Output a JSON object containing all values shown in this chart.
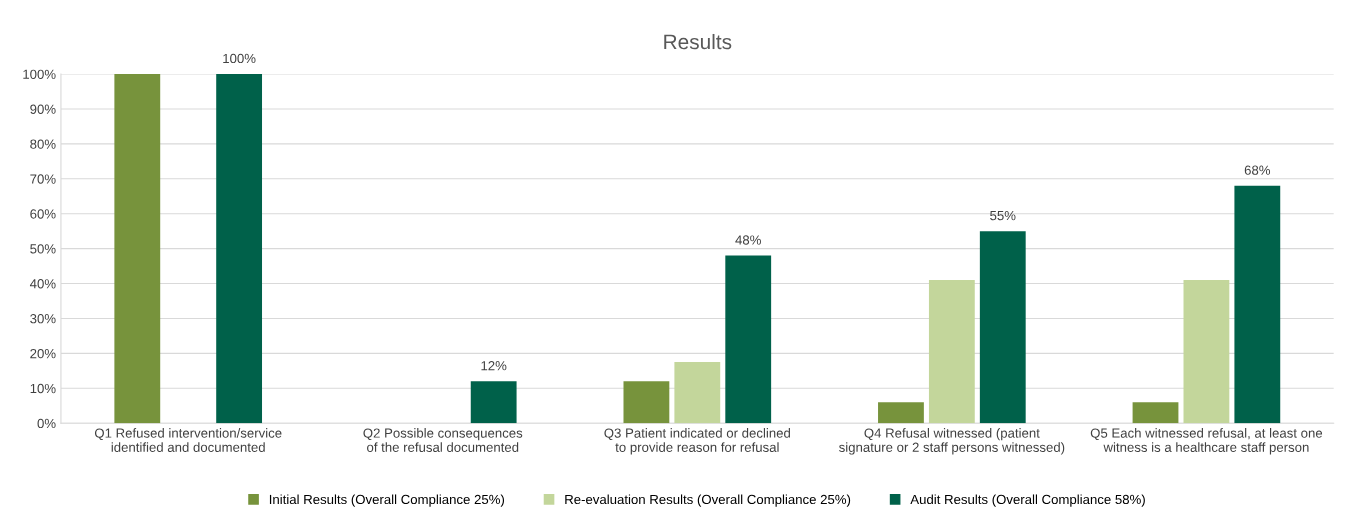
{
  "chart_data": {
    "type": "bar",
    "title": "Results",
    "categories": [
      "Q1 Refused intervention/service identified and documented",
      "Q2 Possible consequences of the refusal documented",
      "Q3 Patient indicated or declined to provide reason for refusal",
      "Q4 Refusal witnessed (patient signature or 2 staff persons witnessed)",
      "Q5 Each witnessed refusal, at least one witness is a healthcare staff person"
    ],
    "series": [
      {
        "name": "Initial Results (Overall Compliance 25%)",
        "color": "#77933c",
        "values": [
          100,
          0,
          12,
          6,
          6
        ]
      },
      {
        "name": "Re-evaluation Results (Overall Compliance 25%)",
        "color": "#c3d69b",
        "values": [
          0,
          0,
          17.5,
          41,
          41
        ]
      },
      {
        "name": "Audit Results (Overall Compliance 58%)",
        "color": "#00614a",
        "values": [
          100,
          12,
          48,
          55,
          68
        ],
        "value_labels": [
          "100%",
          "12%",
          "48%",
          "55%",
          "68%"
        ]
      }
    ],
    "ylim": [
      0,
      100
    ],
    "yticks": [
      {
        "value": 0,
        "label": "0%"
      },
      {
        "value": 10,
        "label": "10%"
      },
      {
        "value": 20,
        "label": "20%"
      },
      {
        "value": 30,
        "label": "30%"
      },
      {
        "value": 40,
        "label": "40%"
      },
      {
        "value": 50,
        "label": "50%"
      },
      {
        "value": 60,
        "label": "60%"
      },
      {
        "value": 70,
        "label": "70%"
      },
      {
        "value": 80,
        "label": "80%"
      },
      {
        "value": 90,
        "label": "90%"
      },
      {
        "value": 100,
        "label": "100%"
      }
    ],
    "grid": "y",
    "legend": "bottom"
  }
}
